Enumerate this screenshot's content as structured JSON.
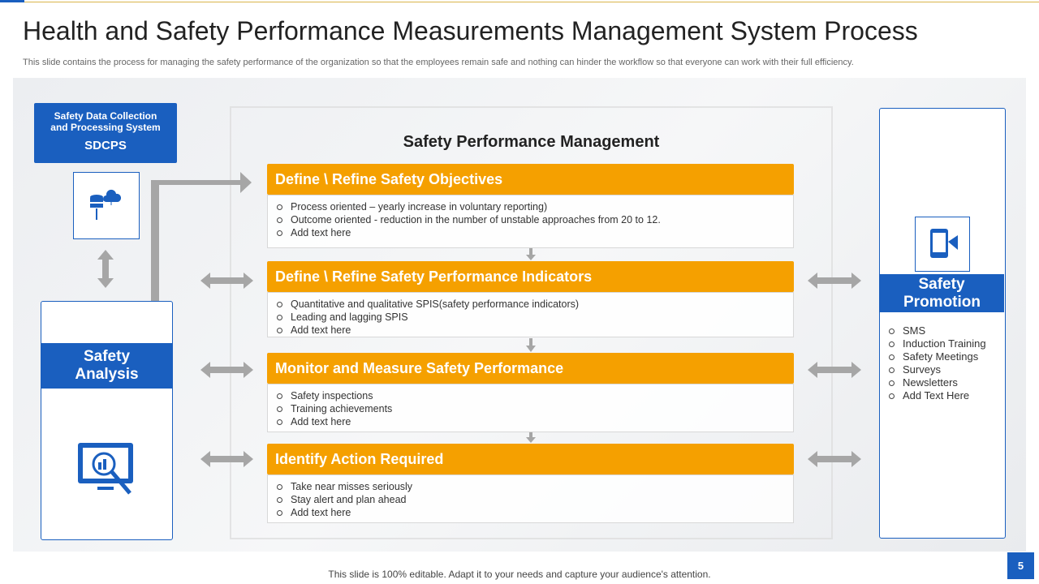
{
  "title": "Health and Safety Performance Measurements Management System Process",
  "subtitle": "This slide contains the process for managing the safety performance of the organization so that the employees remain safe and nothing can hinder the workflow so that everyone can work with their full efficiency.",
  "left": {
    "box_title": "Safety Data Collection and Processing System",
    "box_code": "SDCPS",
    "panel_title": "Safety Analysis"
  },
  "center": {
    "heading": "Safety Performance Management",
    "steps": [
      {
        "title": "Define \\ Refine Safety Objectives",
        "items": [
          "Process oriented – yearly increase in voluntary reporting)",
          "Outcome oriented - reduction in the number of unstable approaches from 20 to 12.",
          "Add text here"
        ]
      },
      {
        "title": "Define \\ Refine Safety Performance Indicators",
        "items": [
          "Quantitative and qualitative SPIS(safety performance indicators)",
          "Leading and lagging SPIS",
          "Add text here"
        ]
      },
      {
        "title": "Monitor and Measure Safety Performance",
        "items": [
          "Safety inspections",
          "Training achievements",
          "Add text here"
        ]
      },
      {
        "title": "Identify Action Required",
        "items": [
          "Take near misses seriously",
          "Stay alert and plan ahead",
          "Add text here"
        ]
      }
    ]
  },
  "right": {
    "title": "Safety Promotion",
    "items": [
      "SMS",
      "Induction Training",
      "Safety Meetings",
      "Surveys",
      "Newsletters",
      "Add Text Here"
    ]
  },
  "footer": "This slide is 100% editable. Adapt it to your needs and capture your audience's attention.",
  "page_number": "5"
}
